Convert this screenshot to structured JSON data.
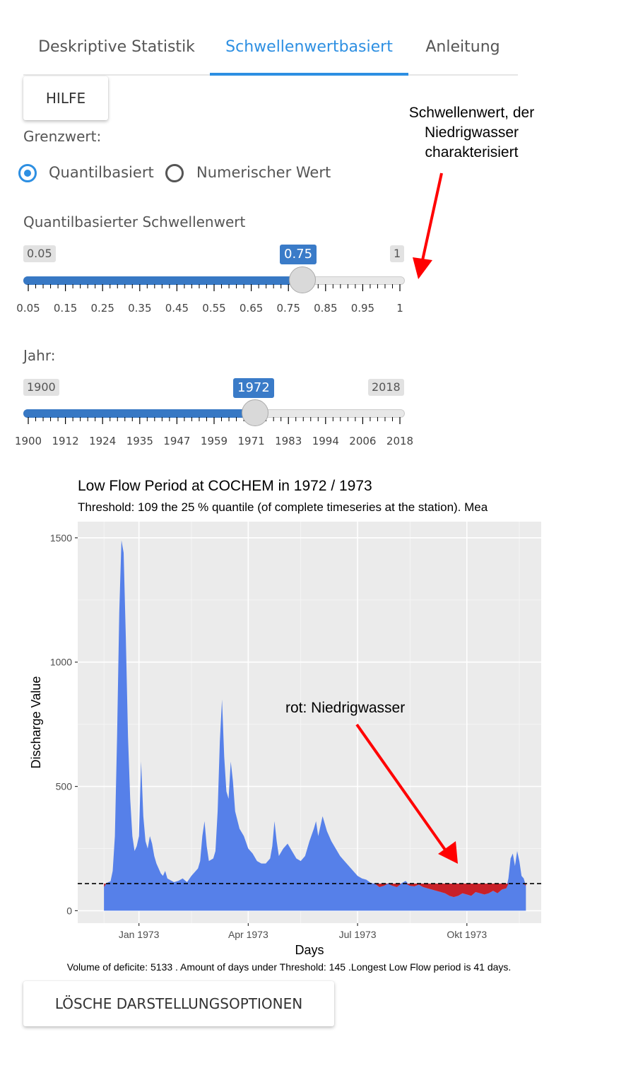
{
  "tabs": [
    {
      "label": "Deskriptive Statistik"
    },
    {
      "label": "Schwellenwertbasiert"
    },
    {
      "label": "Anleitung"
    }
  ],
  "help_button": "HILFE",
  "annotation_threshold": "Schwellenwert, der Niedrigwasser charakterisiert",
  "limit_label": "Grenzwert:",
  "radio": {
    "option1": "Quantilbasiert",
    "option2": "Numerischer Wert",
    "selected": "Quantilbasiert"
  },
  "quantile_slider": {
    "label": "Quantilbasierter Schwellenwert",
    "min": "0.05",
    "max": "1",
    "value": "0.75",
    "value_num": 0.75,
    "ticks": [
      "0.05",
      "0.15",
      "0.25",
      "0.35",
      "0.45",
      "0.55",
      "0.65",
      "0.75",
      "0.85",
      "0.95",
      "1"
    ]
  },
  "year_slider": {
    "label": "Jahr:",
    "min": "1900",
    "max": "2018",
    "value": "1972",
    "value_num": 1972,
    "ticks": [
      "1900",
      "1912",
      "1924",
      "1935",
      "1947",
      "1959",
      "1971",
      "1983",
      "1994",
      "2006",
      "2018"
    ]
  },
  "chart_data": {
    "type": "area",
    "title": "Low Flow Period at COCHEM in 1972 / 1973",
    "subtitle": "Threshold: 109 the 25 % quantile (of complete timeseries at the station). Mea",
    "xlabel": "Days",
    "ylabel": "Discharge Value",
    "x_ticks": [
      "Jan 1973",
      "Apr 1973",
      "Jul 1973",
      "Okt 1973"
    ],
    "y_ticks": [
      "0",
      "500",
      "1000",
      "1500"
    ],
    "ylim": [
      0,
      1500
    ],
    "threshold": 109,
    "colors": {
      "discharge": "#5680e9",
      "deficit": "#c82028",
      "panel": "#ebebeb"
    },
    "series": [
      {
        "values": [
          [
            1972.92,
            95
          ],
          [
            1972.925,
            110
          ],
          [
            1972.93,
            115
          ],
          [
            1972.935,
            118
          ],
          [
            1972.94,
            160
          ],
          [
            1972.945,
            300
          ],
          [
            1972.95,
            700
          ],
          [
            1972.955,
            1200
          ],
          [
            1972.96,
            1490
          ],
          [
            1972.965,
            1440
          ],
          [
            1972.97,
            1100
          ],
          [
            1972.975,
            700
          ],
          [
            1972.98,
            450
          ],
          [
            1972.985,
            300
          ],
          [
            1972.99,
            240
          ],
          [
            1972.995,
            260
          ],
          [
            1973.0,
            300
          ],
          [
            1973.005,
            600
          ],
          [
            1973.01,
            380
          ],
          [
            1973.015,
            280
          ],
          [
            1973.02,
            250
          ],
          [
            1973.025,
            300
          ],
          [
            1973.03,
            270
          ],
          [
            1973.035,
            220
          ],
          [
            1973.04,
            190
          ],
          [
            1973.045,
            170
          ],
          [
            1973.05,
            150
          ],
          [
            1973.055,
            140
          ],
          [
            1973.06,
            160
          ],
          [
            1973.065,
            130
          ],
          [
            1973.07,
            125
          ],
          [
            1973.08,
            115
          ],
          [
            1973.09,
            120
          ],
          [
            1973.1,
            130
          ],
          [
            1973.11,
            115
          ],
          [
            1973.12,
            140
          ],
          [
            1973.13,
            160
          ],
          [
            1973.135,
            170
          ],
          [
            1973.14,
            200
          ],
          [
            1973.145,
            300
          ],
          [
            1973.15,
            360
          ],
          [
            1973.155,
            260
          ],
          [
            1973.16,
            200
          ],
          [
            1973.17,
            210
          ],
          [
            1973.175,
            240
          ],
          [
            1973.18,
            400
          ],
          [
            1973.185,
            680
          ],
          [
            1973.19,
            850
          ],
          [
            1973.195,
            620
          ],
          [
            1973.2,
            480
          ],
          [
            1973.205,
            450
          ],
          [
            1973.21,
            600
          ],
          [
            1973.215,
            520
          ],
          [
            1973.22,
            400
          ],
          [
            1973.23,
            330
          ],
          [
            1973.24,
            300
          ],
          [
            1973.25,
            250
          ],
          [
            1973.26,
            230
          ],
          [
            1973.27,
            200
          ],
          [
            1973.28,
            190
          ],
          [
            1973.29,
            190
          ],
          [
            1973.3,
            210
          ],
          [
            1973.305,
            260
          ],
          [
            1973.31,
            360
          ],
          [
            1973.315,
            280
          ],
          [
            1973.32,
            220
          ],
          [
            1973.33,
            250
          ],
          [
            1973.34,
            270
          ],
          [
            1973.35,
            240
          ],
          [
            1973.36,
            210
          ],
          [
            1973.37,
            200
          ],
          [
            1973.38,
            220
          ],
          [
            1973.39,
            280
          ],
          [
            1973.4,
            330
          ],
          [
            1973.405,
            360
          ],
          [
            1973.41,
            300
          ],
          [
            1973.42,
            380
          ],
          [
            1973.43,
            320
          ],
          [
            1973.44,
            280
          ],
          [
            1973.45,
            250
          ],
          [
            1973.46,
            220
          ],
          [
            1973.47,
            200
          ],
          [
            1973.48,
            180
          ],
          [
            1973.49,
            160
          ],
          [
            1973.5,
            140
          ],
          [
            1973.51,
            130
          ],
          [
            1973.52,
            125
          ],
          [
            1973.53,
            112
          ],
          [
            1973.54,
            108
          ],
          [
            1973.55,
            95
          ],
          [
            1973.56,
            100
          ],
          [
            1973.57,
            110
          ],
          [
            1973.58,
            100
          ],
          [
            1973.59,
            95
          ],
          [
            1973.6,
            110
          ],
          [
            1973.61,
            120
          ],
          [
            1973.62,
            100
          ],
          [
            1973.63,
            98
          ],
          [
            1973.64,
            105
          ],
          [
            1973.65,
            95
          ],
          [
            1973.66,
            90
          ],
          [
            1973.67,
            85
          ],
          [
            1973.68,
            80
          ],
          [
            1973.69,
            75
          ],
          [
            1973.7,
            70
          ],
          [
            1973.71,
            60
          ],
          [
            1973.72,
            55
          ],
          [
            1973.73,
            60
          ],
          [
            1973.74,
            70
          ],
          [
            1973.75,
            65
          ],
          [
            1973.76,
            60
          ],
          [
            1973.77,
            75
          ],
          [
            1973.78,
            70
          ],
          [
            1973.79,
            65
          ],
          [
            1973.8,
            70
          ],
          [
            1973.81,
            80
          ],
          [
            1973.82,
            70
          ],
          [
            1973.83,
            85
          ],
          [
            1973.84,
            90
          ],
          [
            1973.845,
            130
          ],
          [
            1973.85,
            210
          ],
          [
            1973.855,
            230
          ],
          [
            1973.86,
            180
          ],
          [
            1973.865,
            240
          ],
          [
            1973.87,
            200
          ],
          [
            1973.875,
            140
          ],
          [
            1973.88,
            130
          ],
          [
            1973.885,
            100
          ]
        ]
      }
    ],
    "stats_caption": "Volume of deficite:  5133 . Amount of days under Threshold: 145 .Longest Low Flow period is 41 days."
  },
  "annotation_red": "rot: Niedrigwasser",
  "reset_button": "LÖSCHE DARSTELLUNGSOPTIONEN"
}
